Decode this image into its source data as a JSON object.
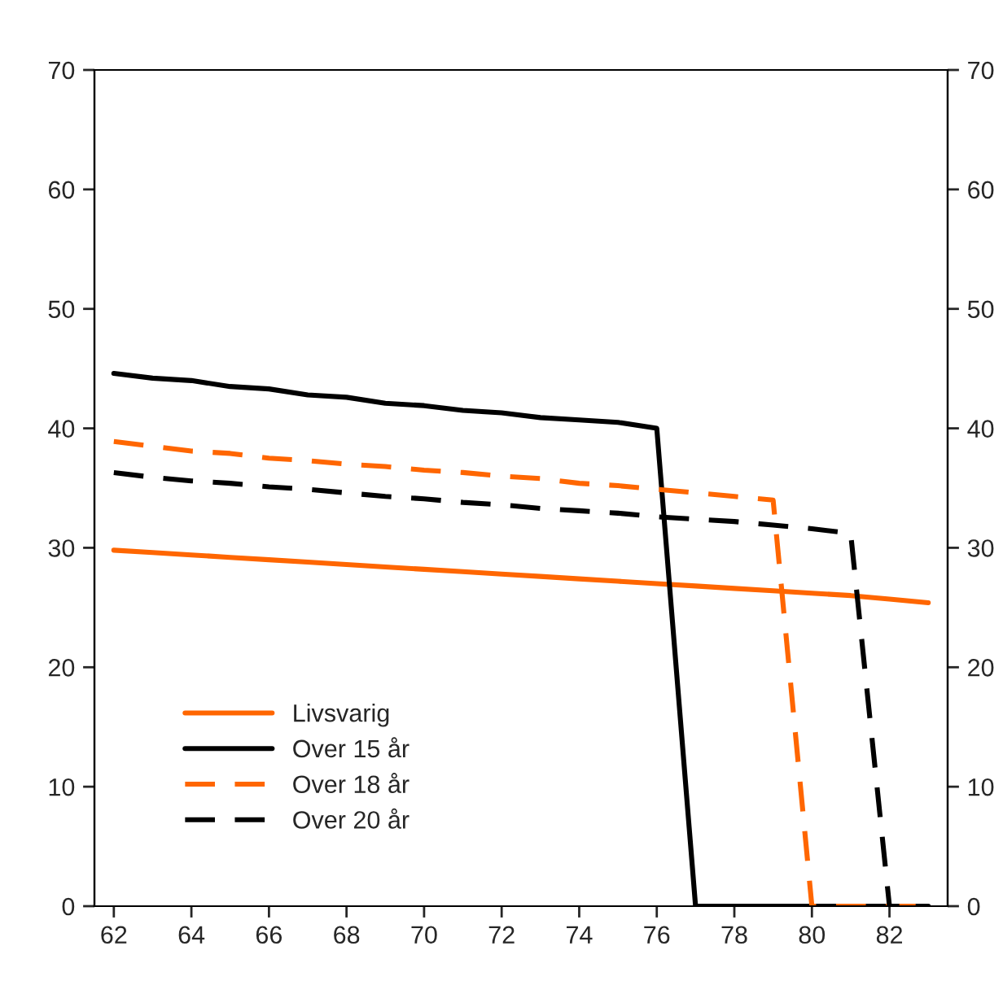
{
  "chart_data": {
    "type": "line",
    "x": [
      62,
      63,
      64,
      65,
      66,
      67,
      68,
      69,
      70,
      71,
      72,
      73,
      74,
      75,
      76,
      77,
      78,
      79,
      80,
      81,
      82,
      83
    ],
    "series": [
      {
        "name": "Livsvarig",
        "color": "#ff6600",
        "line_style": "solid",
        "values": [
          29.8,
          29.6,
          29.4,
          29.2,
          29.0,
          28.8,
          28.6,
          28.4,
          28.2,
          28.0,
          27.8,
          27.6,
          27.4,
          27.2,
          27.0,
          26.8,
          26.6,
          26.4,
          26.2,
          26.0,
          25.7,
          25.4
        ]
      },
      {
        "name": "Over 15 år",
        "color": "#000000",
        "line_style": "solid",
        "values": [
          44.6,
          44.2,
          44.0,
          43.5,
          43.3,
          42.8,
          42.6,
          42.1,
          41.9,
          41.5,
          41.3,
          40.9,
          40.7,
          40.5,
          40.0,
          0,
          0,
          0,
          0,
          0,
          0,
          0
        ]
      },
      {
        "name": "Over 18 år",
        "color": "#ff6600",
        "line_style": "dashed",
        "values": [
          38.9,
          38.5,
          38.1,
          37.9,
          37.5,
          37.3,
          37.0,
          36.8,
          36.5,
          36.3,
          36.0,
          35.8,
          35.4,
          35.2,
          34.9,
          34.6,
          34.3,
          34.0,
          0,
          0,
          0,
          0
        ]
      },
      {
        "name": "Over 20 år",
        "color": "#000000",
        "line_style": "dashed",
        "values": [
          36.3,
          35.9,
          35.6,
          35.4,
          35.1,
          34.9,
          34.6,
          34.3,
          34.1,
          33.8,
          33.6,
          33.3,
          33.1,
          32.9,
          32.6,
          32.4,
          32.2,
          31.9,
          31.6,
          31.2,
          0,
          0
        ]
      }
    ],
    "xlim": [
      61.5,
      83.5
    ],
    "xticks": [
      62,
      64,
      66,
      68,
      70,
      72,
      74,
      76,
      78,
      80,
      82
    ],
    "ylim": [
      0,
      70
    ],
    "yticks": [
      0,
      10,
      20,
      30,
      40,
      50,
      60,
      70
    ],
    "y2lim": [
      0,
      70
    ],
    "y2ticks": [
      0,
      10,
      20,
      30,
      40,
      50,
      60,
      70
    ],
    "grid": false,
    "legend": "bottom left"
  }
}
